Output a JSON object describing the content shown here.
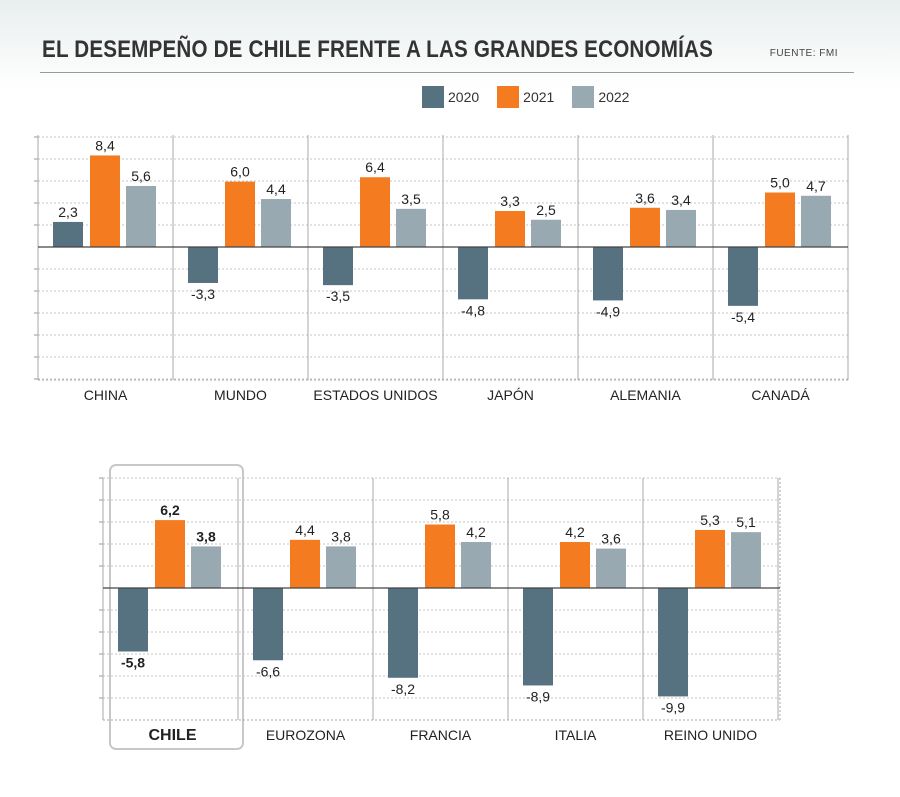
{
  "header": {
    "title": "EL DESEMPEÑO DE CHILE FRENTE A LAS GRANDES ECONOMÍAS",
    "source": "FUENTE: FMI"
  },
  "colors": {
    "2020": "#56717f",
    "2021": "#f47b20",
    "2022": "#99a9b1"
  },
  "legend": [
    "2020",
    "2021",
    "2022"
  ],
  "chart_data": [
    {
      "type": "bar",
      "title": "",
      "series_keys": [
        "2020",
        "2021",
        "2022"
      ],
      "categories": [
        {
          "label": "CHINA",
          "values": [
            2.3,
            8.4,
            5.6
          ],
          "value_labels": [
            "2,3",
            "8,4",
            "5,6"
          ]
        },
        {
          "label": "MUNDO",
          "values": [
            -3.3,
            6.0,
            4.4
          ],
          "value_labels": [
            "-3,3",
            "6,0",
            "4,4"
          ]
        },
        {
          "label": "ESTADOS UNIDOS",
          "values": [
            -3.5,
            6.4,
            3.5
          ],
          "value_labels": [
            "-3,5",
            "6,4",
            "3,5"
          ]
        },
        {
          "label": "JAPÓN",
          "values": [
            -4.8,
            3.3,
            2.5
          ],
          "value_labels": [
            "-4,8",
            "3,3",
            "2,5"
          ]
        },
        {
          "label": "ALEMANIA",
          "values": [
            -4.9,
            3.6,
            3.4
          ],
          "value_labels": [
            "-4,9",
            "3,6",
            "3,4"
          ]
        },
        {
          "label": "CANADÁ",
          "values": [
            -5.4,
            5.0,
            4.7
          ],
          "value_labels": [
            "-5,4",
            "5,0",
            "4,7"
          ]
        }
      ],
      "grid": true
    },
    {
      "type": "bar",
      "title": "",
      "series_keys": [
        "2020",
        "2021",
        "2022"
      ],
      "categories": [
        {
          "label": "CHILE",
          "highlight": true,
          "values": [
            -5.8,
            6.2,
            3.8
          ],
          "value_labels": [
            "-5,8",
            "6,2",
            "3,8"
          ]
        },
        {
          "label": "EUROZONA",
          "values": [
            -6.6,
            4.4,
            3.8
          ],
          "value_labels": [
            "-6,6",
            "4,4",
            "3,8"
          ]
        },
        {
          "label": "FRANCIA",
          "values": [
            -8.2,
            5.8,
            4.2
          ],
          "value_labels": [
            "-8,2",
            "5,8",
            "4,2"
          ]
        },
        {
          "label": "ITALIA",
          "values": [
            -8.9,
            4.2,
            3.6
          ],
          "value_labels": [
            "-8,9",
            "4,2",
            "3,6"
          ]
        },
        {
          "label": "REINO UNIDO",
          "values": [
            -9.9,
            5.3,
            5.1
          ],
          "value_labels": [
            "-9,9",
            "5,3",
            "5,1"
          ]
        }
      ],
      "grid": true
    }
  ]
}
